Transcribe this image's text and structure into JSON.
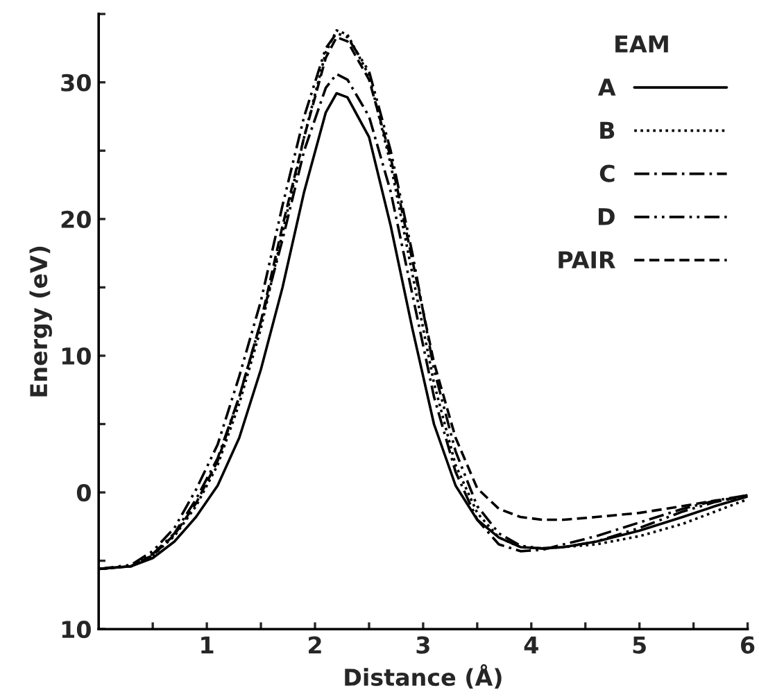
{
  "chart_data": {
    "type": "line",
    "xlabel": "Distance (Å)",
    "ylabel": "Energy (eV)",
    "legend_title": "EAM",
    "legend": "top right",
    "grid": false,
    "x": [
      0,
      0.3,
      0.5,
      0.7,
      0.9,
      1.1,
      1.3,
      1.5,
      1.7,
      1.9,
      2.1,
      2.2,
      2.3,
      2.5,
      2.7,
      2.9,
      3.1,
      3.3,
      3.5,
      3.7,
      3.9,
      4.1,
      4.3,
      4.6,
      5.0,
      5.4,
      5.7,
      6.0
    ],
    "series": [
      {
        "name": "A",
        "color": "#000000",
        "line_style": "solid",
        "values": [
          -5.6,
          -5.4,
          -4.8,
          -3.6,
          -1.8,
          0.5,
          4,
          9,
          15,
          22,
          27.8,
          29.2,
          28.9,
          26,
          19.5,
          12,
          5,
          0.5,
          -2,
          -3.3,
          -4,
          -4.1,
          -4,
          -3.6,
          -2.8,
          -1.8,
          -1,
          -0.3
        ]
      },
      {
        "name": "B",
        "color": "#000000",
        "line_style": "dotted",
        "values": [
          -5.6,
          -5.4,
          -4.6,
          -3.2,
          -1,
          2,
          6.5,
          12,
          19,
          26,
          32.2,
          33.8,
          33.5,
          30.5,
          24,
          16,
          8,
          2,
          -1.5,
          -3.3,
          -4,
          -4.1,
          -4,
          -3.8,
          -3.2,
          -2.3,
          -1.4,
          -0.5
        ]
      },
      {
        "name": "C",
        "color": "#000000",
        "line_style": "dashdot",
        "values": [
          -5.6,
          -5.4,
          -4.5,
          -3,
          -0.5,
          2.5,
          7,
          12.5,
          18.5,
          25,
          29.6,
          30.6,
          30.2,
          27.5,
          22,
          14.5,
          7,
          1.5,
          -2,
          -3.8,
          -4.3,
          -4.2,
          -3.8,
          -3.2,
          -2.2,
          -1.2,
          -0.6,
          -0.2
        ]
      },
      {
        "name": "D",
        "color": "#000000",
        "line_style": "dashdotdot",
        "values": [
          -5.6,
          -5.3,
          -4.3,
          -2.6,
          0.2,
          3.5,
          8.5,
          14,
          21,
          27.5,
          32.5,
          33.6,
          33.3,
          30.8,
          25,
          17.5,
          9,
          3,
          -1,
          -3,
          -3.9,
          -4.1,
          -4,
          -3.6,
          -2.6,
          -1.4,
          -0.7,
          -0.2
        ]
      },
      {
        "name": "PAIR",
        "color": "#000000",
        "line_style": "dashed",
        "values": [
          -5.6,
          -5.4,
          -4.6,
          -3.1,
          -0.8,
          2.3,
          7,
          12.5,
          19.5,
          26,
          31.8,
          33.3,
          33,
          30.2,
          24.5,
          17,
          9.5,
          4,
          0.3,
          -1.2,
          -1.8,
          -2,
          -2,
          -1.8,
          -1.5,
          -1,
          -0.6,
          -0.3
        ]
      }
    ],
    "xlim": [
      0,
      6
    ],
    "xticks": [
      {
        "value": 0.5,
        "label": null
      },
      1,
      {
        "value": 1.5,
        "label": null
      },
      2,
      {
        "value": 2.5,
        "label": null
      },
      3,
      {
        "value": 3.5,
        "label": null
      },
      4,
      {
        "value": 4.5,
        "label": null
      },
      5,
      {
        "value": 5.5,
        "label": null
      },
      6
    ],
    "ylim": [
      -10,
      35
    ],
    "yticks": [
      {
        "value": -10,
        "label": "10"
      },
      {
        "value": -5,
        "label": null
      },
      0,
      {
        "value": 5,
        "label": null
      },
      10,
      {
        "value": 15,
        "label": null
      },
      20,
      {
        "value": 25,
        "label": null
      },
      30,
      {
        "value": 35,
        "label": null
      }
    ]
  }
}
